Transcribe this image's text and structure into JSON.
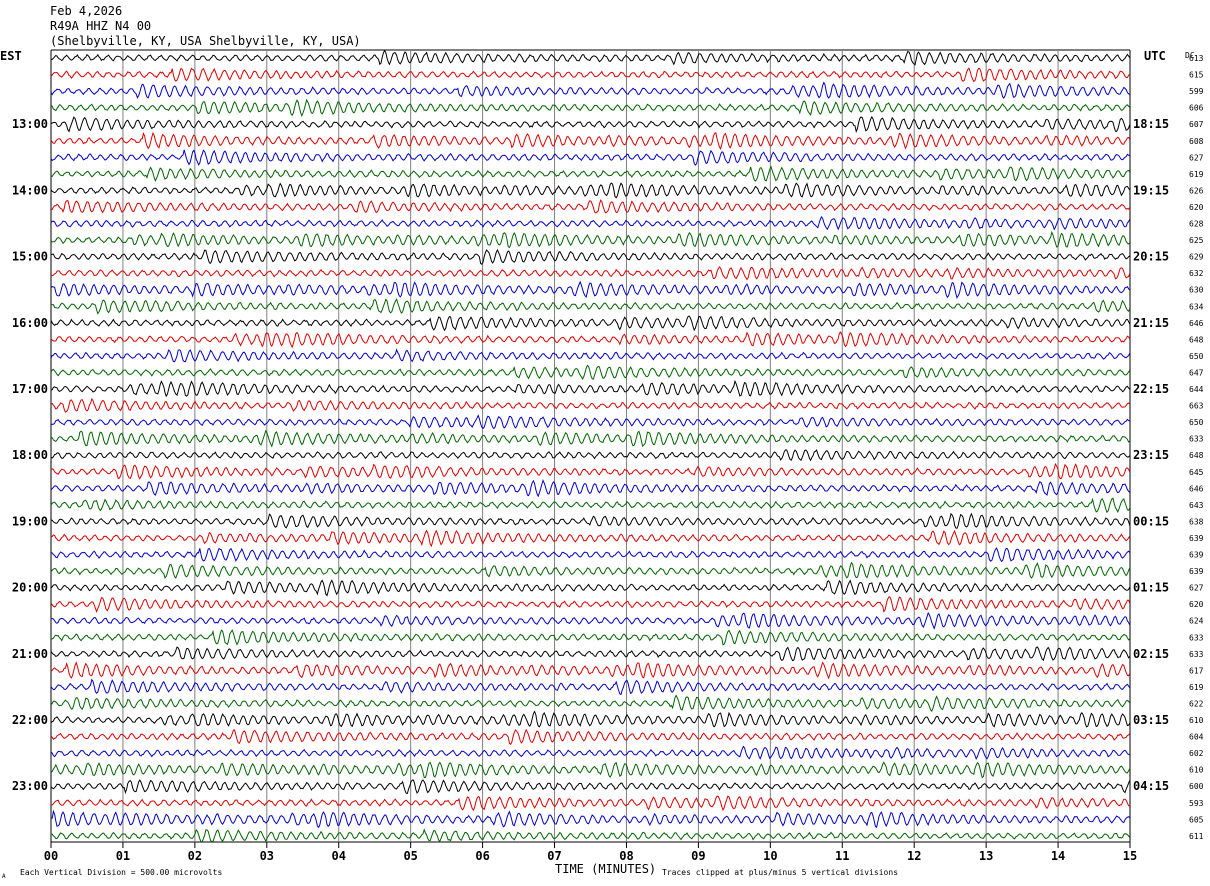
{
  "header": {
    "date": "Feb 4,2026",
    "station": "R49A HHZ N4 00",
    "location": "(Shelbyville, KY, USA Shelbyville, KY, USA)"
  },
  "left_tz": "EST",
  "right_tz": "UTC",
  "dc_label": "DC",
  "footer": {
    "scale_note": "Each Vertical Division =  500.00 microvolts",
    "x_axis_title": "TIME (MINUTES)",
    "clip_note": "Traces clipped at plus/minus 5 vertical divisions",
    "corner_mark": "A"
  },
  "colors": {
    "trace_cycle": [
      "#000000",
      "#dd0000",
      "#0000cc",
      "#006400"
    ],
    "grid": "#808080"
  },
  "chart_data": {
    "type": "line",
    "title": "",
    "xlabel": "TIME (MINUTES)",
    "ylabel": "",
    "xlim": [
      0,
      15
    ],
    "x_ticks": [
      "00",
      "01",
      "02",
      "03",
      "04",
      "05",
      "06",
      "07",
      "08",
      "09",
      "10",
      "11",
      "12",
      "13",
      "14",
      "15"
    ],
    "left_time_labels": [
      "13:00",
      "14:00",
      "15:00",
      "16:00",
      "17:00",
      "18:00",
      "19:00",
      "20:00",
      "21:00",
      "22:00",
      "23:00"
    ],
    "right_time_labels": [
      "18:15",
      "19:15",
      "20:15",
      "21:15",
      "22:15",
      "23:15",
      "00:15",
      "01:15",
      "02:15",
      "03:15",
      "04:15"
    ],
    "dc_offsets": [
      613,
      615,
      599,
      606,
      607,
      608,
      627,
      619,
      626,
      620,
      628,
      625,
      629,
      632,
      630,
      634,
      646,
      648,
      650,
      647,
      644,
      663,
      650,
      633,
      648,
      645,
      646,
      643,
      638,
      639,
      639,
      639,
      627,
      620,
      624,
      633,
      633,
      617,
      619,
      622,
      610,
      604,
      602,
      610,
      600,
      593,
      605,
      611
    ],
    "trace_count": 48,
    "grid": true
  }
}
